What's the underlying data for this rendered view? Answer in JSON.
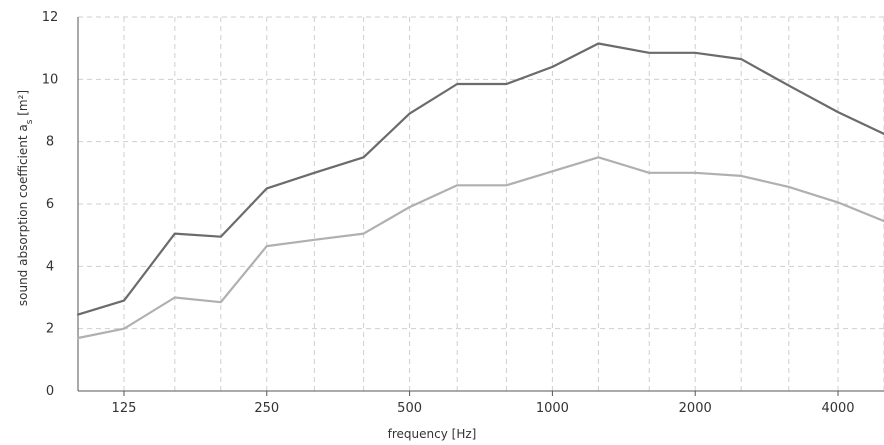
{
  "chart_data": {
    "type": "line",
    "xlabel": "frequency [Hz]",
    "ylabel": "sound absorption coefficient a",
    "ylabel_subscript": "s",
    "ylabel_unit": " [m²]",
    "x_scale": "log",
    "xlim": [
      100,
      5000
    ],
    "ylim": [
      0,
      12
    ],
    "grid": true,
    "x_ticks": [
      125,
      250,
      500,
      1000,
      2000,
      4000
    ],
    "x_tick_labels": [
      "125",
      "250",
      "500",
      "1000",
      "2000",
      "4000"
    ],
    "y_ticks": [
      0,
      2,
      4,
      6,
      8,
      10,
      12
    ],
    "y_tick_labels": [
      "0",
      "2",
      "4",
      "6",
      "8",
      "10",
      "12"
    ],
    "x": [
      100,
      125,
      160,
      200,
      250,
      315,
      400,
      500,
      630,
      800,
      1000,
      1250,
      1600,
      2000,
      2500,
      3150,
      4000,
      5000
    ],
    "series": [
      {
        "color": "#6b6b6b",
        "values": [
          2.45,
          2.9,
          5.05,
          4.95,
          6.5,
          7.0,
          7.5,
          8.9,
          9.85,
          9.85,
          10.4,
          11.15,
          10.85,
          10.85,
          10.65,
          9.8,
          8.95,
          8.25
        ]
      },
      {
        "color": "#b0b0b0",
        "values": [
          1.7,
          2.0,
          3.0,
          2.85,
          4.65,
          4.85,
          5.05,
          5.9,
          6.6,
          6.6,
          7.05,
          7.5,
          7.0,
          7.0,
          6.9,
          6.55,
          6.05,
          5.45
        ]
      }
    ]
  }
}
